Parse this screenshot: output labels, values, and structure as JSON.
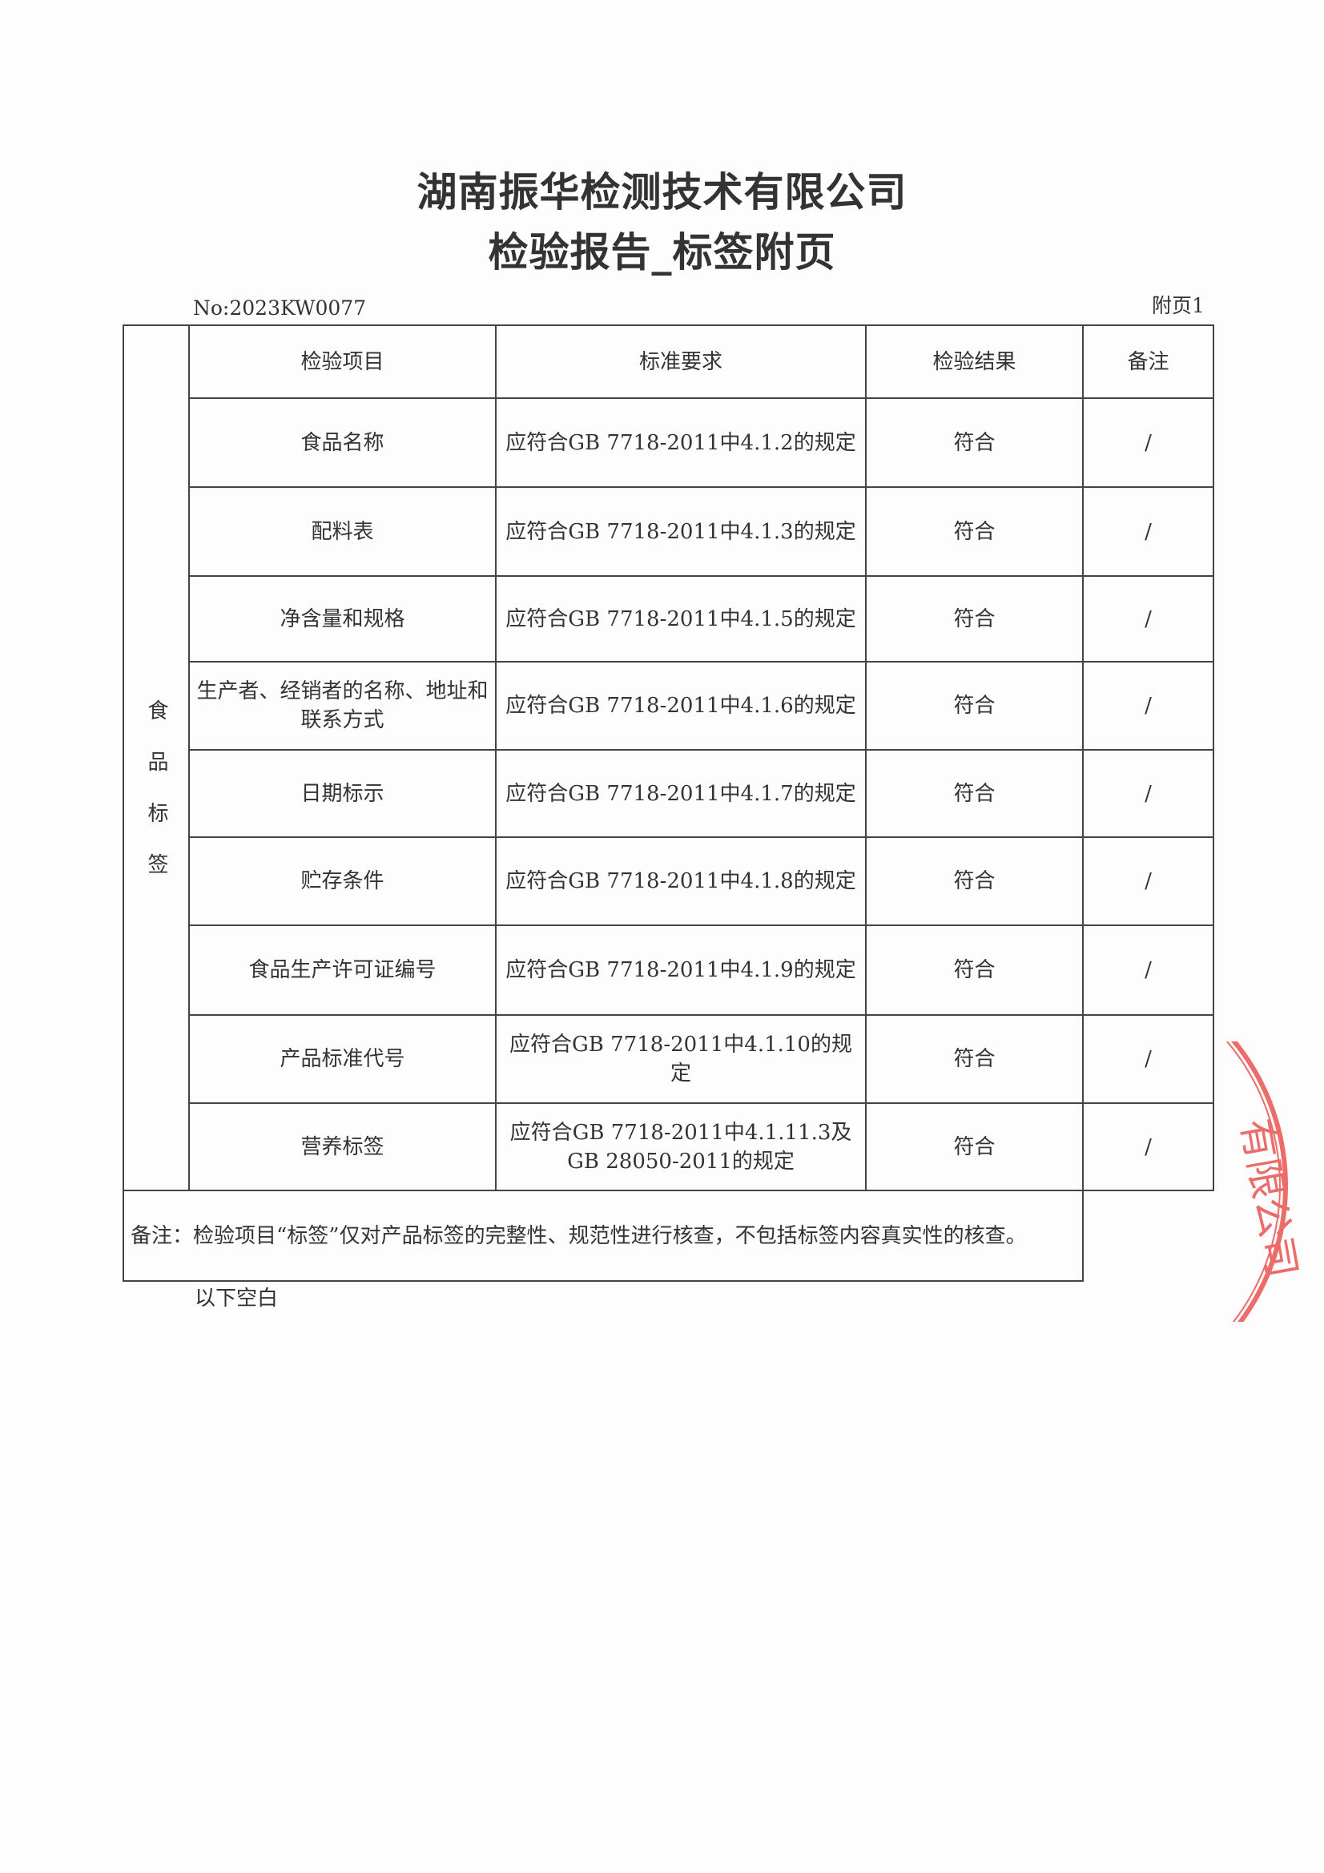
{
  "header": {
    "company": "湖南振华检测技术有限公司",
    "report_title": "检验报告_标签附页",
    "report_no": "No:2023KW0077",
    "page_label": "附页1"
  },
  "table": {
    "group_label": "食品标签",
    "columns": [
      "检验项目",
      "标准要求",
      "检验结果",
      "备注"
    ],
    "rows": [
      {
        "item": "食品名称",
        "requirement": "应符合GB 7718-2011中4.1.2的规定",
        "result": "符合",
        "remark": "/"
      },
      {
        "item": "配料表",
        "requirement": "应符合GB 7718-2011中4.1.3的规定",
        "result": "符合",
        "remark": "/"
      },
      {
        "item": "净含量和规格",
        "requirement": "应符合GB 7718-2011中4.1.5的规定",
        "result": "符合",
        "remark": "/"
      },
      {
        "item": "生产者、经销者的名称、地址和联系方式",
        "requirement": "应符合GB 7718-2011中4.1.6的规定",
        "result": "符合",
        "remark": "/"
      },
      {
        "item": "日期标示",
        "requirement": "应符合GB 7718-2011中4.1.7的规定",
        "result": "符合",
        "remark": "/"
      },
      {
        "item": "贮存条件",
        "requirement": "应符合GB 7718-2011中4.1.8的规定",
        "result": "符合",
        "remark": "/"
      },
      {
        "item": "食品生产许可证编号",
        "requirement": "应符合GB 7718-2011中4.1.9的规定",
        "result": "符合",
        "remark": "/"
      },
      {
        "item": "产品标准代号",
        "requirement": "应符合GB 7718-2011中4.1.10的规定",
        "result": "符合",
        "remark": "/"
      },
      {
        "item": "营养标签",
        "requirement": "应符合GB 7718-2011中4.1.11.3及GB 28050-2011的规定",
        "result": "符合",
        "remark": "/"
      }
    ],
    "note": "备注：检验项目“标签”仅对产品标签的完整性、规范性进行核查，不包括标签内容真实性的核查。"
  },
  "footer": {
    "blank_below": "以下空白"
  },
  "stamp": {
    "text": "有限公司",
    "color": "#e8534f"
  }
}
